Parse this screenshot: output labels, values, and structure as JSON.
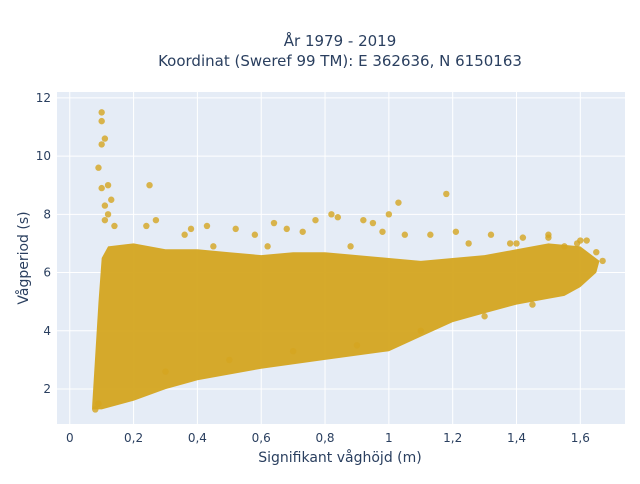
{
  "chart_data": {
    "type": "scatter",
    "title_line1": "År 1979 - 2019",
    "title_line2": "Koordinat (Sweref 99 TM): E 362636, N 6150163",
    "xlabel": "Signifikant våghöjd (m)",
    "ylabel": "Vågperiod (s)",
    "xlim": [
      -0.04,
      1.74
    ],
    "ylim": [
      0.8,
      12.2
    ],
    "x_ticks": [
      0,
      0.2,
      0.4,
      0.6,
      0.8,
      1.0,
      1.2,
      1.4,
      1.6
    ],
    "x_tick_labels": [
      "0",
      "0,2",
      "0,4",
      "0,6",
      "0,8",
      "1",
      "1,2",
      "1,4",
      "1,6"
    ],
    "y_ticks": [
      2,
      4,
      6,
      8,
      10,
      12
    ],
    "y_tick_labels": [
      "2",
      "4",
      "6",
      "8",
      "10",
      "12"
    ],
    "grid": true,
    "series": [
      {
        "color": "#D4A520",
        "description_points": "dense cloud; lower envelope rises from ~1.3 s at 0.08 m to ~5.2 s at 1.55 m; upper band ~6-7 s; outliers up to ~11.5 s near 0.1 m",
        "x": [
          0.08,
          0.09,
          0.1,
          0.1,
          0.11,
          0.1,
          0.09,
          0.12,
          0.1,
          0.11,
          0.14,
          0.25,
          0.13,
          0.12,
          0.11,
          0.27,
          0.24,
          0.38,
          0.36,
          0.43,
          0.52,
          0.64,
          0.73,
          0.77,
          0.82,
          0.84,
          0.92,
          0.98,
          1.0,
          1.03,
          1.18,
          1.13,
          1.21,
          1.32,
          1.38,
          1.42,
          1.5,
          1.55,
          1.59,
          1.62,
          1.65,
          1.67,
          0.3,
          0.5,
          0.7,
          0.9,
          1.1,
          1.3,
          1.45,
          0.45,
          0.62,
          0.58,
          0.68,
          0.88,
          0.95,
          1.05,
          1.25,
          1.4,
          1.5,
          1.6
        ],
        "y": [
          1.3,
          1.5,
          11.5,
          11.2,
          10.6,
          10.4,
          9.6,
          9.0,
          8.9,
          8.3,
          7.6,
          9.0,
          8.5,
          8.0,
          7.8,
          7.8,
          7.6,
          7.5,
          7.3,
          7.6,
          7.5,
          7.7,
          7.4,
          7.8,
          8.0,
          7.9,
          7.8,
          7.4,
          8.0,
          8.4,
          8.7,
          7.3,
          7.4,
          7.3,
          7.0,
          7.2,
          7.2,
          6.9,
          7.0,
          7.1,
          6.7,
          6.4,
          2.6,
          3.0,
          3.3,
          3.5,
          4.0,
          4.5,
          4.9,
          6.9,
          6.9,
          7.3,
          7.5,
          6.9,
          7.7,
          7.3,
          7.0,
          7.0,
          7.3,
          7.1
        ]
      }
    ],
    "density": {
      "lower_envelope": [
        [
          0.07,
          1.3
        ],
        [
          0.1,
          1.3
        ],
        [
          0.2,
          1.6
        ],
        [
          0.3,
          2.0
        ],
        [
          0.4,
          2.3
        ],
        [
          0.5,
          2.5
        ],
        [
          0.6,
          2.7
        ],
        [
          0.8,
          3.0
        ],
        [
          1.0,
          3.3
        ],
        [
          1.1,
          3.8
        ],
        [
          1.2,
          4.3
        ],
        [
          1.3,
          4.6
        ],
        [
          1.4,
          4.9
        ],
        [
          1.5,
          5.1
        ],
        [
          1.55,
          5.2
        ],
        [
          1.6,
          5.5
        ],
        [
          1.65,
          6.0
        ]
      ],
      "upper_envelope": [
        [
          0.07,
          1.4
        ],
        [
          0.09,
          5.0
        ],
        [
          0.1,
          6.5
        ],
        [
          0.12,
          6.9
        ],
        [
          0.2,
          7.0
        ],
        [
          0.3,
          6.8
        ],
        [
          0.4,
          6.8
        ],
        [
          0.5,
          6.7
        ],
        [
          0.6,
          6.6
        ],
        [
          0.7,
          6.7
        ],
        [
          0.8,
          6.7
        ],
        [
          0.9,
          6.6
        ],
        [
          1.0,
          6.5
        ],
        [
          1.1,
          6.4
        ],
        [
          1.2,
          6.5
        ],
        [
          1.3,
          6.6
        ],
        [
          1.4,
          6.8
        ],
        [
          1.5,
          7.0
        ],
        [
          1.6,
          6.9
        ],
        [
          1.66,
          6.4
        ]
      ]
    }
  }
}
